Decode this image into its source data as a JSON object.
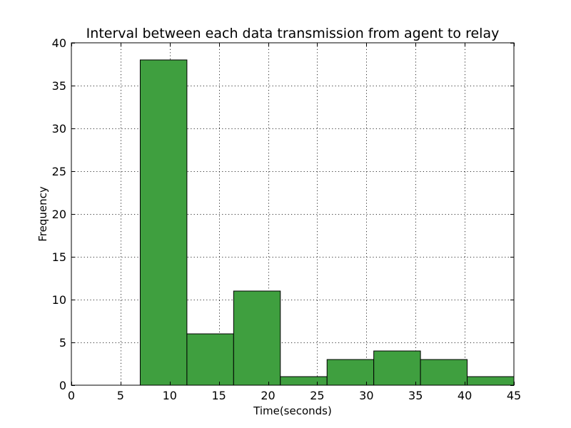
{
  "chart_data": {
    "type": "bar",
    "title": "Interval between each data transmission from agent to relay",
    "xlabel": "Time(seconds)",
    "ylabel": "Frequency",
    "xlim": [
      0,
      45
    ],
    "ylim": [
      0,
      40
    ],
    "xticks": [
      0,
      5,
      10,
      15,
      20,
      25,
      30,
      35,
      40,
      45
    ],
    "yticks": [
      0,
      5,
      10,
      15,
      20,
      25,
      30,
      35,
      40
    ],
    "grid": true,
    "bar_color": "#3f9f3f",
    "bins": [
      {
        "start": 7.0,
        "end": 11.75,
        "value": 38
      },
      {
        "start": 11.75,
        "end": 16.5,
        "value": 6
      },
      {
        "start": 16.5,
        "end": 21.25,
        "value": 11
      },
      {
        "start": 21.25,
        "end": 26.0,
        "value": 1
      },
      {
        "start": 26.0,
        "end": 30.75,
        "value": 3
      },
      {
        "start": 30.75,
        "end": 35.5,
        "value": 4
      },
      {
        "start": 35.5,
        "end": 40.25,
        "value": 3
      },
      {
        "start": 40.25,
        "end": 45.0,
        "value": 1
      }
    ]
  }
}
